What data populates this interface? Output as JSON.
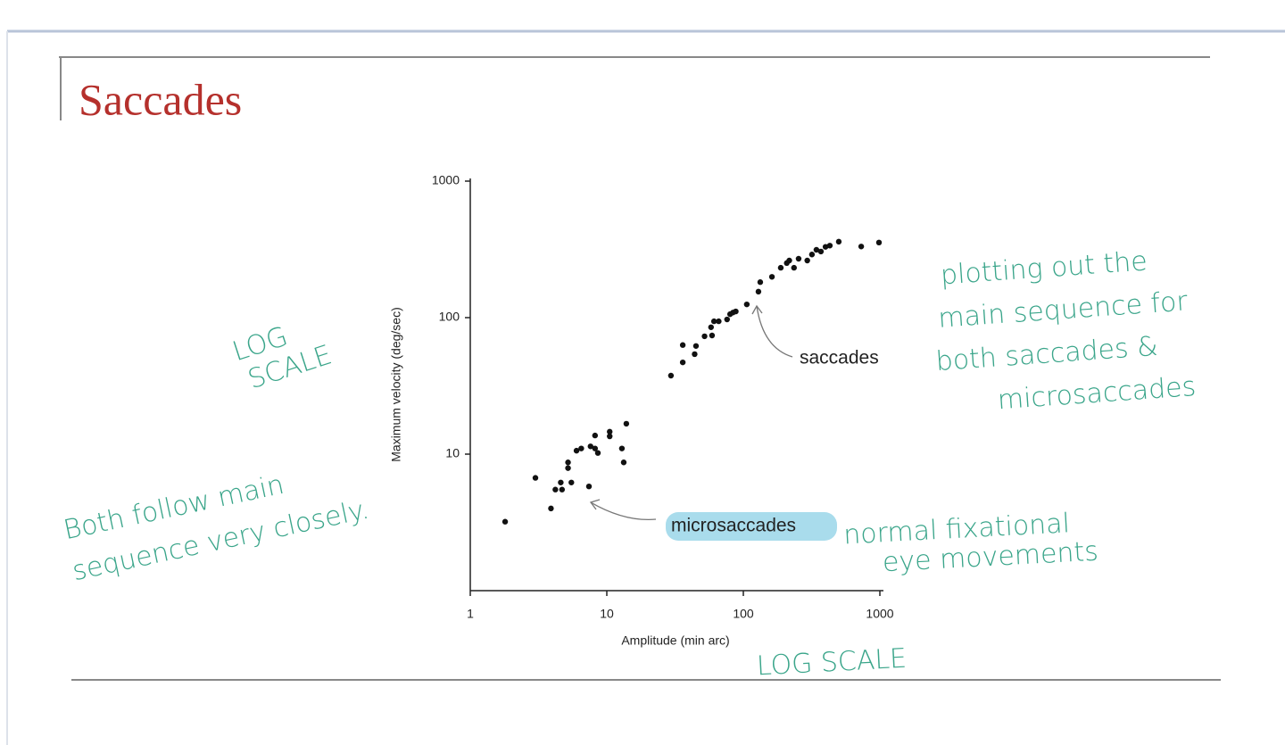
{
  "slide": {
    "title": "Saccades"
  },
  "annotations": {
    "log_scale_left": [
      "LOG",
      "SCALE"
    ],
    "log_scale_bottom": "LOG SCALE",
    "main_sequence": [
      "plotting out the",
      "main sequence for",
      "both saccades &",
      "microsaccades"
    ],
    "follow": [
      "Both follow main",
      "sequence very closely."
    ],
    "fixational": [
      "normal fixational",
      "eye movements"
    ]
  },
  "chart_data": {
    "type": "scatter",
    "x_label": "Amplitude (min arc)",
    "y_label": "Maximum velocity (deg/sec)",
    "xlim": [
      1,
      1000
    ],
    "ylim": [
      1,
      1000
    ],
    "xscale": "log",
    "yscale": "log",
    "xticks": [
      1,
      10,
      100,
      1000
    ],
    "yticks": [
      10,
      100,
      1000
    ],
    "series": [
      {
        "name": "microsaccades",
        "color": "#111111",
        "x": [
          1.8,
          3.0,
          3.9,
          4.2,
          4.6,
          4.7,
          5.2,
          5.2,
          5.5,
          6.0,
          6.5,
          7.4,
          7.6,
          8.2,
          8.2,
          8.6,
          10.5,
          10.5,
          12.9,
          13.3,
          13.9
        ],
        "values": [
          3.2,
          6.7,
          4.0,
          5.5,
          6.2,
          5.5,
          7.9,
          8.7,
          6.2,
          10.6,
          11,
          5.8,
          11.4,
          13.7,
          11,
          10.2,
          13.5,
          14.6,
          11,
          8.7,
          16.7
        ]
      },
      {
        "name": "saccades",
        "color": "#111111",
        "x": [
          29.5,
          36,
          36,
          44,
          45,
          52,
          58,
          59,
          61,
          66,
          76,
          80,
          84,
          88,
          106,
          129,
          133,
          162,
          188,
          208,
          217,
          235,
          254,
          294,
          318,
          343,
          370,
          400,
          430,
          500,
          730,
          985
        ],
        "values": [
          37.6,
          47,
          63,
          54,
          62,
          73,
          85,
          74,
          94,
          94,
          97,
          106,
          109,
          111,
          125,
          155,
          182,
          199,
          232,
          251,
          262,
          232,
          270,
          262,
          290,
          314,
          305,
          330,
          337,
          360,
          332,
          355
        ]
      }
    ]
  }
}
